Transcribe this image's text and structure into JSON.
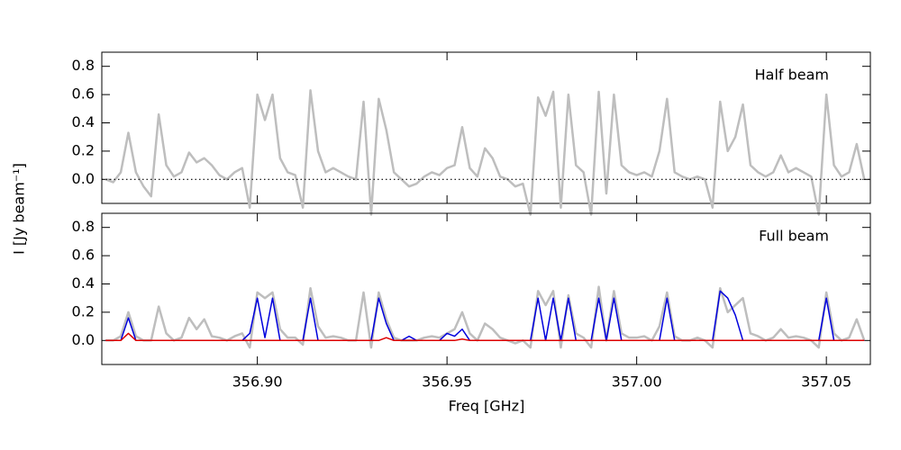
{
  "chart_data": [
    {
      "type": "line",
      "annotation": "Half beam",
      "y_label": "I [Jy beam⁻¹]",
      "zero_line": true,
      "xlim": [
        356.859,
        357.0616
      ],
      "ylim": [
        -0.17,
        0.9
      ],
      "yticks": [
        {
          "value": 0,
          "label": "0.0"
        },
        0.2,
        0.4,
        0.6,
        0.8
      ],
      "x": [
        356.86,
        356.862,
        356.864,
        356.866,
        356.868,
        356.87,
        356.872,
        356.874,
        356.876,
        356.878,
        356.88,
        356.882,
        356.884,
        356.886,
        356.888,
        356.89,
        356.892,
        356.894,
        356.896,
        356.898,
        356.9,
        356.902,
        356.904,
        356.906,
        356.908,
        356.91,
        356.912,
        356.914,
        356.916,
        356.918,
        356.92,
        356.922,
        356.924,
        356.926,
        356.928,
        356.93,
        356.932,
        356.934,
        356.936,
        356.938,
        356.94,
        356.942,
        356.944,
        356.946,
        356.948,
        356.95,
        356.952,
        356.954,
        356.956,
        356.958,
        356.96,
        356.962,
        356.964,
        356.966,
        356.968,
        356.97,
        356.972,
        356.974,
        356.976,
        356.978,
        356.98,
        356.982,
        356.984,
        356.986,
        356.988,
        356.99,
        356.992,
        356.994,
        356.996,
        356.998,
        357.0,
        357.002,
        357.004,
        357.006,
        357.008,
        357.01,
        357.012,
        357.014,
        357.016,
        357.018,
        357.02,
        357.022,
        357.024,
        357.026,
        357.028,
        357.03,
        357.032,
        357.034,
        357.036,
        357.038,
        357.04,
        357.042,
        357.044,
        357.046,
        357.048,
        357.05,
        357.052,
        357.054,
        357.056,
        357.058,
        357.06
      ],
      "series": [
        {
          "color": "#bebebe",
          "values": [
            0.0,
            -0.02,
            0.05,
            0.33,
            0.05,
            -0.05,
            -0.12,
            0.46,
            0.1,
            0.02,
            0.05,
            0.19,
            0.12,
            0.15,
            0.1,
            0.03,
            0.0,
            0.05,
            0.08,
            -0.2,
            0.6,
            0.42,
            0.6,
            0.15,
            0.05,
            0.03,
            -0.2,
            0.63,
            0.2,
            0.05,
            0.08,
            0.05,
            0.02,
            0.0,
            0.55,
            -0.25,
            0.57,
            0.35,
            0.05,
            0.0,
            -0.05,
            -0.03,
            0.02,
            0.05,
            0.03,
            0.08,
            0.1,
            0.37,
            0.08,
            0.02,
            0.22,
            0.15,
            0.02,
            0.0,
            -0.05,
            -0.03,
            -0.25,
            0.58,
            0.45,
            0.62,
            -0.2,
            0.6,
            0.1,
            0.05,
            -0.25,
            0.62,
            -0.1,
            0.6,
            0.1,
            0.05,
            0.03,
            0.05,
            0.02,
            0.2,
            0.57,
            0.05,
            0.02,
            0.0,
            0.02,
            0.0,
            -0.2,
            0.55,
            0.2,
            0.3,
            0.53,
            0.1,
            0.05,
            0.02,
            0.05,
            0.17,
            0.05,
            0.08,
            0.05,
            0.02,
            -0.25,
            0.6,
            0.1,
            0.02,
            0.05,
            0.25,
            0.0
          ]
        }
      ]
    },
    {
      "type": "line",
      "annotation": "Full beam",
      "x_label": "Freq [GHz]",
      "zero_line": false,
      "xlim": [
        356.859,
        357.0616
      ],
      "ylim": [
        -0.17,
        0.9
      ],
      "yticks": [
        {
          "value": 0,
          "label": "0.0"
        },
        0.2,
        0.4,
        0.6,
        0.8
      ],
      "xticks": [
        {
          "value": 356.9,
          "label": "356.90"
        },
        356.95,
        {
          "value": 357,
          "label": "357.00"
        },
        357.05
      ],
      "x": [
        356.86,
        356.862,
        356.864,
        356.866,
        356.868,
        356.87,
        356.872,
        356.874,
        356.876,
        356.878,
        356.88,
        356.882,
        356.884,
        356.886,
        356.888,
        356.89,
        356.892,
        356.894,
        356.896,
        356.898,
        356.9,
        356.902,
        356.904,
        356.906,
        356.908,
        356.91,
        356.912,
        356.914,
        356.916,
        356.918,
        356.92,
        356.922,
        356.924,
        356.926,
        356.928,
        356.93,
        356.932,
        356.934,
        356.936,
        356.938,
        356.94,
        356.942,
        356.944,
        356.946,
        356.948,
        356.95,
        356.952,
        356.954,
        356.956,
        356.958,
        356.96,
        356.962,
        356.964,
        356.966,
        356.968,
        356.97,
        356.972,
        356.974,
        356.976,
        356.978,
        356.98,
        356.982,
        356.984,
        356.986,
        356.988,
        356.99,
        356.992,
        356.994,
        356.996,
        356.998,
        357.0,
        357.002,
        357.004,
        357.006,
        357.008,
        357.01,
        357.012,
        357.014,
        357.016,
        357.018,
        357.02,
        357.022,
        357.024,
        357.026,
        357.028,
        357.03,
        357.032,
        357.034,
        357.036,
        357.038,
        357.04,
        357.042,
        357.044,
        357.046,
        357.048,
        357.05,
        357.052,
        357.054,
        357.056,
        357.058,
        357.06
      ],
      "series": [
        {
          "color": "#bebebe",
          "values": [
            0.0,
            0.0,
            0.03,
            0.2,
            0.03,
            0.0,
            0.0,
            0.24,
            0.05,
            0.0,
            0.02,
            0.16,
            0.08,
            0.15,
            0.03,
            0.02,
            0.0,
            0.03,
            0.05,
            -0.05,
            0.34,
            0.3,
            0.34,
            0.08,
            0.02,
            0.02,
            -0.03,
            0.37,
            0.1,
            0.02,
            0.03,
            0.02,
            0.0,
            0.0,
            0.34,
            -0.05,
            0.34,
            0.15,
            0.02,
            0.0,
            0.0,
            0.0,
            0.02,
            0.03,
            0.02,
            0.05,
            0.08,
            0.2,
            0.05,
            0.0,
            0.12,
            0.08,
            0.02,
            0.0,
            -0.02,
            0.0,
            -0.05,
            0.35,
            0.25,
            0.35,
            -0.05,
            0.32,
            0.05,
            0.02,
            -0.05,
            0.38,
            0.0,
            0.35,
            0.05,
            0.02,
            0.02,
            0.03,
            0.0,
            0.1,
            0.34,
            0.03,
            0.0,
            0.0,
            0.02,
            0.0,
            -0.05,
            0.37,
            0.2,
            0.25,
            0.3,
            0.05,
            0.03,
            0.0,
            0.02,
            0.08,
            0.02,
            0.03,
            0.02,
            0.0,
            -0.05,
            0.34,
            0.05,
            0.0,
            0.02,
            0.15,
            0.0
          ]
        },
        {
          "color": "#0000dd",
          "values": [
            0,
            0,
            0,
            0.16,
            0,
            0,
            0,
            0,
            0,
            0,
            0,
            0,
            0,
            0,
            0,
            0,
            0,
            0,
            0,
            0.05,
            0.3,
            0.02,
            0.3,
            0,
            0,
            0,
            0,
            0.3,
            0,
            0,
            0,
            0,
            0,
            0,
            0,
            0,
            0.3,
            0.12,
            0,
            0,
            0.03,
            0,
            0,
            0,
            0,
            0.05,
            0.03,
            0.08,
            0,
            0,
            0,
            0,
            0,
            0,
            0,
            0,
            0,
            0.3,
            0,
            0.3,
            0,
            0.3,
            0,
            0,
            0,
            0.3,
            0,
            0.3,
            0,
            0,
            0,
            0,
            0,
            0,
            0.3,
            0,
            0,
            0,
            0,
            0,
            0,
            0.35,
            0.3,
            0.18,
            0,
            0,
            0,
            0,
            0,
            0,
            0,
            0,
            0,
            0,
            0,
            0.3,
            0,
            0,
            0,
            0,
            0
          ]
        },
        {
          "color": "#dd0000",
          "values": [
            0,
            0,
            0,
            0.05,
            0,
            0,
            0,
            0,
            0,
            0,
            0,
            0,
            0,
            0,
            0,
            0,
            0,
            0,
            0,
            0,
            0,
            0,
            0,
            0,
            0,
            0,
            0,
            0,
            0,
            0,
            0,
            0,
            0,
            0,
            0,
            0,
            0,
            0.02,
            0,
            0,
            0,
            0,
            0,
            0,
            0,
            0,
            0,
            0.01,
            0,
            0,
            0,
            0,
            0,
            0,
            0,
            0,
            0,
            0,
            0,
            0,
            0,
            0,
            0,
            0,
            0,
            0,
            0,
            0,
            0,
            0,
            0,
            0,
            0,
            0,
            0,
            0,
            0,
            0,
            0,
            0,
            0,
            0,
            0,
            0,
            0,
            0,
            0,
            0,
            0,
            0,
            0,
            0,
            0,
            0,
            0,
            0,
            0,
            0,
            0,
            0,
            0
          ]
        }
      ]
    }
  ]
}
